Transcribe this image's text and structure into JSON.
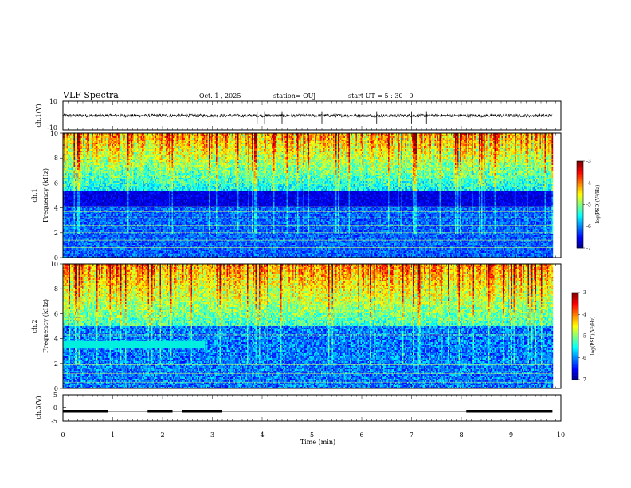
{
  "header": {
    "title": "VLF Spectra",
    "date": "Oct. 1 , 2025",
    "station": "station= OUJ",
    "start": "start UT = 5 : 30 : 0"
  },
  "chart_data": [
    {
      "type": "line",
      "panel": "ch1-waveform",
      "ylabel": "ch.1(V)",
      "ylim": [
        -10,
        10
      ],
      "y_tick_labels": [
        "10",
        "-10"
      ],
      "xlim": [
        0,
        9.83
      ],
      "baseline": 0,
      "spikes_min": [
        2.55,
        3.9,
        4.05,
        4.4,
        5.2,
        6.3,
        7.0,
        7.3
      ]
    },
    {
      "type": "heatmap",
      "panel": "ch1-spectrogram",
      "ylabel": "ch.1 Frequency (kHz)",
      "ylim": [
        0,
        10
      ],
      "y_tick_labels": [
        "0",
        "2",
        "4",
        "6",
        "8",
        "10"
      ],
      "xlim": [
        0,
        9.83
      ],
      "colorbar": {
        "label": "log(PSD)(V²/Hz)",
        "range": [
          -7,
          -3
        ],
        "tick_labels": [
          "-3",
          "-4",
          "-5",
          "-6",
          "-7"
        ]
      },
      "tonal_lines_khz": [
        0.3,
        0.8,
        1.4,
        2.0,
        2.6,
        3.2,
        3.7,
        4.1,
        4.7
      ]
    },
    {
      "type": "heatmap",
      "panel": "ch2-spectrogram",
      "ylabel": "ch.2 Frequency (kHz)",
      "ylim": [
        0,
        10
      ],
      "y_tick_labels": [
        "0",
        "2",
        "4",
        "6",
        "8",
        "10"
      ],
      "xlim": [
        0,
        9.83
      ],
      "colorbar": {
        "label": "log(PSD)(V²/Hz)",
        "range": [
          -7,
          -3
        ],
        "tick_labels": [
          "-3",
          "-4",
          "-5",
          "-6",
          "-7"
        ]
      },
      "interference_band": {
        "x_min": [
          0,
          2.85
        ],
        "f_khz": [
          3.2,
          3.8
        ]
      },
      "tonal_lines_khz": [
        0.5,
        1.2,
        1.9,
        2.6,
        4.3
      ]
    },
    {
      "type": "line",
      "panel": "ch3-status",
      "ylabel": "ch.3(V)",
      "ylim": [
        -5,
        5
      ],
      "y_tick_labels": [
        "5",
        "0",
        "-5"
      ],
      "level_v": -1.3,
      "thick_segments_min": [
        [
          0,
          0.9
        ],
        [
          1.7,
          2.2
        ],
        [
          2.4,
          3.2
        ],
        [
          8.1,
          9.83
        ]
      ]
    }
  ],
  "x_axis": {
    "label": "Time (min)",
    "range": [
      0,
      10
    ],
    "tick_labels": [
      "0",
      "1",
      "2",
      "3",
      "4",
      "5",
      "6",
      "7",
      "8",
      "9",
      "10"
    ]
  },
  "colors": {
    "background": "#000050",
    "colormap": [
      "#000080",
      "#0000ff",
      "#0080ff",
      "#00ffff",
      "#80ff80",
      "#ffff00",
      "#ff8000",
      "#ff0000",
      "#800000"
    ]
  }
}
